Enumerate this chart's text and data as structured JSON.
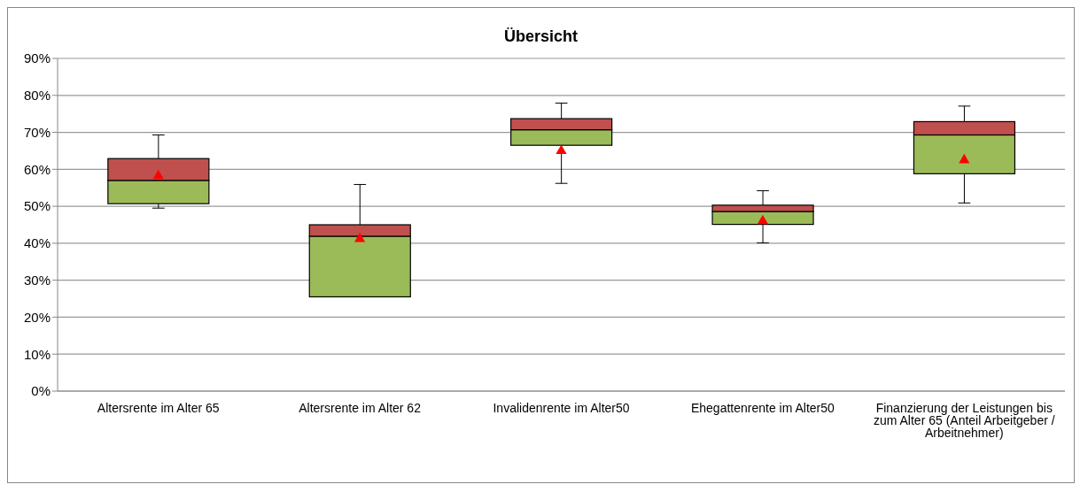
{
  "chart_data": {
    "type": "box",
    "title": "Übersicht",
    "categories": [
      "Altersrente im Alter 65",
      "Altersrente im Alter 62",
      "Invalidenrente im Alter50",
      "Ehegattenrente im Alter50",
      "Finanzierung der Leistungen bis zum Alter 65 (Anteil Arbeitgeber / Arbeitnehmer)"
    ],
    "color": "#c0504d",
    "series": [
      {
        "type": "box",
        "color": "#9bbb59",
        "boxes": [
          {
            "low": 49.5,
            "q1": 50.7,
            "median": 57.0,
            "q3": 62.9,
            "high": 69.3
          },
          {
            "low": 25.5,
            "q1": 25.5,
            "median": 41.9,
            "q3": 45.0,
            "high": 55.9
          },
          {
            "low": 56.2,
            "q1": 66.5,
            "median": 70.7,
            "q3": 73.7,
            "high": 77.9
          },
          {
            "low": 40.1,
            "q1": 45.1,
            "median": 48.6,
            "q3": 50.3,
            "high": 54.2
          },
          {
            "low": 50.9,
            "q1": 58.8,
            "median": 69.3,
            "q3": 72.9,
            "high": 77.1
          }
        ]
      },
      {
        "type": "scatter",
        "color": "#ff0000",
        "marker": "triangle",
        "values": [
          58.2,
          41.2,
          65.0,
          46.0,
          62.5
        ]
      }
    ],
    "ylim": [
      0,
      90
    ],
    "yticks": [
      {
        "value": 0,
        "label": "0%"
      },
      {
        "value": 10,
        "label": "10%"
      },
      {
        "value": 20,
        "label": "20%"
      },
      {
        "value": 30,
        "label": "30%"
      },
      {
        "value": 40,
        "label": "40%"
      },
      {
        "value": 50,
        "label": "50%"
      },
      {
        "value": 60,
        "label": "60%"
      },
      {
        "value": 70,
        "label": "70%"
      },
      {
        "value": 80,
        "label": "80%"
      },
      {
        "value": 90,
        "label": "90%"
      }
    ],
    "grid": "y"
  }
}
